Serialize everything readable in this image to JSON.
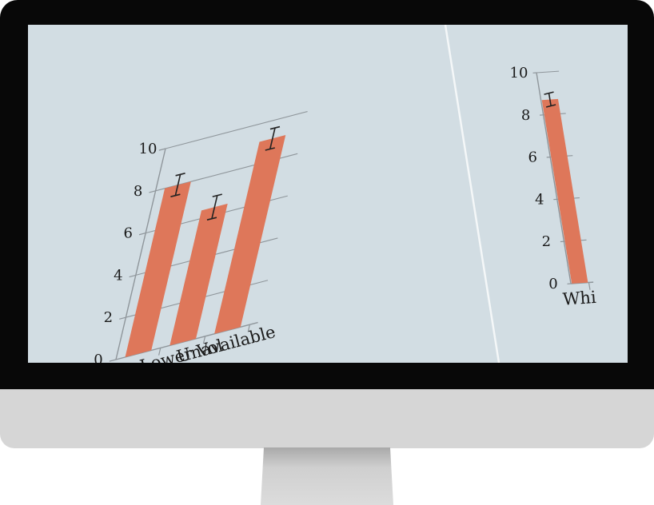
{
  "colors": {
    "bar": "#de775a",
    "gridline": "#8f969b",
    "screen_bg": "#d2dde3",
    "bezel": "#080808",
    "chin": "#d6d6d6"
  },
  "chart_data": [
    {
      "type": "bar",
      "title": "",
      "xlabel": "",
      "ylabel": "",
      "categories": [
        "",
        "Lower Vol",
        "Unavailable"
      ],
      "values": [
        8.0,
        6.4,
        9.1
      ],
      "error": [
        0.5,
        0.55,
        0.5
      ],
      "yticks": [
        0,
        2,
        4,
        6,
        8,
        10
      ],
      "ylim": [
        0,
        10
      ],
      "grid": true,
      "legend": "none"
    },
    {
      "type": "bar",
      "title": "",
      "xlabel": "",
      "ylabel": "",
      "categories": [
        "Whi"
      ],
      "values": [
        8.7
      ],
      "error": [
        0.3
      ],
      "yticks": [
        0,
        2,
        4,
        6,
        8,
        10
      ],
      "ylim": [
        0,
        10
      ],
      "grid": true,
      "legend": "none"
    }
  ]
}
